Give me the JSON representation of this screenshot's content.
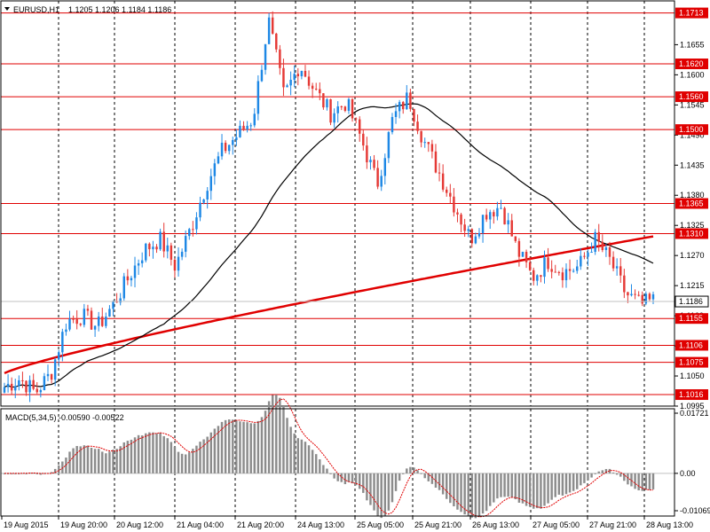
{
  "header": {
    "symbol": "EURUSD,H1",
    "ohlc": "1.1205 1.1206 1.1184 1.1186"
  },
  "macd": {
    "label": "MACD(5,34,5) -0.00590 -0.00522",
    "axis_ticks": [
      {
        "value": 0.01721,
        "label": "0.01721"
      },
      {
        "value": 0.0,
        "label": "0.00"
      },
      {
        "value": -0.01069,
        "label": "-0.01069"
      }
    ]
  },
  "colors": {
    "bull": "#1e88e5",
    "bear": "#e53935",
    "red_line": "#e00000",
    "ma_slow": "#e00000",
    "ma_fast": "#000000",
    "histogram": "#8c8c8c",
    "signal": "#e00000",
    "current_price_bg": "#ffffff"
  },
  "chart_data": {
    "type": "candlestick",
    "symbol": "EURUSD",
    "timeframe": "H1",
    "ylim": [
      1.0995,
      1.1735
    ],
    "y_ticks": [
      "1.1655",
      "1.1600",
      "1.1545",
      "1.1490",
      "1.1435",
      "1.1380",
      "1.1325",
      "1.1270",
      "1.1215",
      "1.1160",
      "1.1105",
      "1.1050",
      "1.0995"
    ],
    "x_labels": [
      "19 Aug 2015",
      "19 Aug 20:00",
      "20 Aug 12:00",
      "21 Aug 04:00",
      "21 Aug 20:00",
      "24 Aug 13:00",
      "25 Aug 05:00",
      "25 Aug 21:00",
      "26 Aug 13:00",
      "27 Aug 05:00",
      "27 Aug 21:00",
      "28 Aug 13:00"
    ],
    "levels": [
      "1.1713",
      "1.1620",
      "1.1560",
      "1.1500",
      "1.1365",
      "1.1310",
      "1.1155",
      "1.1106",
      "1.1075",
      "1.1016"
    ],
    "current_price": "1.1186",
    "path": [
      1.103,
      1.1045,
      1.102,
      1.1055,
      1.115,
      1.116,
      1.114,
      1.118,
      1.123,
      1.128,
      1.13,
      1.125,
      1.132,
      1.14,
      1.146,
      1.149,
      1.152,
      1.17,
      1.156,
      1.162,
      1.157,
      1.153,
      1.155,
      1.148,
      1.14,
      1.152,
      1.156,
      1.148,
      1.142,
      1.136,
      1.13,
      1.135,
      1.136,
      1.128,
      1.123,
      1.126,
      1.124,
      1.125,
      1.13,
      1.126,
      1.12,
      1.118,
      1.119
    ]
  }
}
